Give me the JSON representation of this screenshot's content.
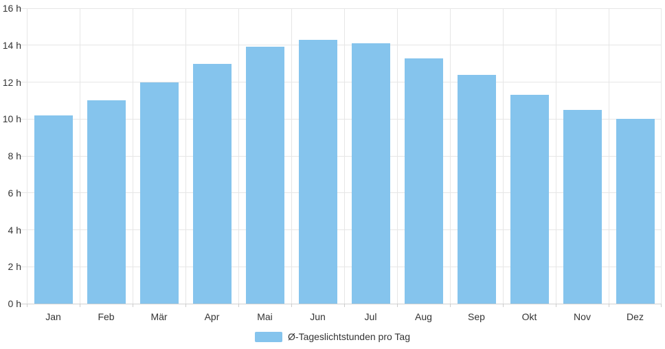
{
  "chart_data": {
    "type": "bar",
    "categories": [
      "Jan",
      "Feb",
      "Mär",
      "Apr",
      "Mai",
      "Jun",
      "Jul",
      "Aug",
      "Sep",
      "Okt",
      "Nov",
      "Dez"
    ],
    "values": [
      10.2,
      11.0,
      12.0,
      13.0,
      13.9,
      14.3,
      14.1,
      13.3,
      12.4,
      11.3,
      10.5,
      10.0
    ],
    "series_name": "Ø-Tageslichtstunden pro Tag",
    "unit": "h",
    "ylim": [
      0,
      16
    ],
    "ytick_step": 2,
    "ytick_labels": [
      "0 h",
      "2 h",
      "4 h",
      "6 h",
      "8 h",
      "10 h",
      "12 h",
      "14 h",
      "16 h"
    ],
    "grid": true,
    "legend_position": "bottom",
    "bar_color": "#85c4ed",
    "grid_color": "#e6e6e6",
    "axis_color": "#d0d0d0",
    "text_color": "#333333"
  },
  "legend": {
    "label": "Ø-Tageslichtstunden pro Tag"
  }
}
